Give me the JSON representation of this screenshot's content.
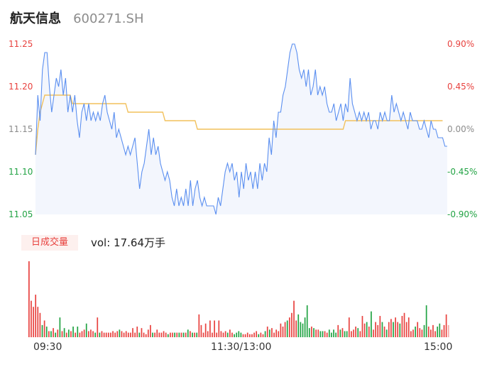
{
  "stock": {
    "name": "航天信息",
    "code": "600271.SH"
  },
  "volume": {
    "tab_label": "日成交量",
    "summary": "vol: 17.64万手"
  },
  "colors": {
    "price_line": "#5b8ff0",
    "avg_line": "#f2c15c",
    "up": "#e8423f",
    "down": "#22a344",
    "flat": "#8c8c8c",
    "area": "#f3f6fd"
  },
  "chart_data": [
    {
      "type": "line",
      "series": [
        {
          "name": "",
          "values": [
            11.12,
            11.19,
            11.16,
            11.22,
            11.24,
            11.24,
            11.2,
            11.17,
            11.19,
            11.21,
            11.2,
            11.22,
            11.19,
            11.21,
            11.17,
            11.19,
            11.17,
            11.19,
            11.16,
            11.14,
            11.17,
            11.18,
            11.16,
            11.18,
            11.16,
            11.17,
            11.16,
            11.17,
            11.16,
            11.18,
            11.19,
            11.17,
            11.16,
            11.15,
            11.17,
            11.14,
            11.15,
            11.14,
            11.13,
            11.12,
            11.13,
            11.12,
            11.13,
            11.14,
            11.11,
            11.08,
            11.1,
            11.11,
            11.13,
            11.15,
            11.12,
            11.14,
            11.12,
            11.13,
            11.11,
            11.1,
            11.09,
            11.1,
            11.09,
            11.07,
            11.06,
            11.08,
            11.06,
            11.07,
            11.06,
            11.08,
            11.06,
            11.09,
            11.06,
            11.08,
            11.09,
            11.07,
            11.06,
            11.07,
            11.06,
            11.06,
            11.06,
            11.06,
            11.05,
            11.07,
            11.06,
            11.08,
            11.1,
            11.11,
            11.1,
            11.11,
            11.09,
            11.1,
            11.07,
            11.1,
            11.08,
            11.11,
            11.09,
            11.1,
            11.08,
            11.1,
            11.08,
            11.11,
            11.09,
            11.11,
            11.1,
            11.14,
            11.12,
            11.16,
            11.14,
            11.17,
            11.17,
            11.19,
            11.2,
            11.22,
            11.24,
            11.25,
            11.25,
            11.24,
            11.22,
            11.21,
            11.22,
            11.2,
            11.22,
            11.19,
            11.2,
            11.22,
            11.19,
            11.2,
            11.19,
            11.2,
            11.18,
            11.17,
            11.17,
            11.18,
            11.16,
            11.17,
            11.18,
            11.16,
            11.18,
            11.17,
            11.21,
            11.18,
            11.17,
            11.16,
            11.17,
            11.16,
            11.17,
            11.16,
            11.17,
            11.15,
            11.16,
            11.16,
            11.15,
            11.17,
            11.16,
            11.17,
            11.16,
            11.16,
            11.19,
            11.17,
            11.18,
            11.17,
            11.16,
            11.17,
            11.16,
            11.15,
            11.17,
            11.16,
            11.16,
            11.16,
            11.15,
            11.15,
            11.16,
            11.15,
            11.14,
            11.16,
            11.15,
            11.15,
            11.14,
            11.14,
            11.14,
            11.13,
            11.13
          ]
        },
        {
          "name": "",
          "values": [
            11.12,
            11.15,
            11.17,
            11.18,
            11.19,
            11.19,
            11.19,
            11.19,
            11.19,
            11.19,
            11.19,
            11.19,
            11.19,
            11.19,
            11.19,
            11.19,
            11.18,
            11.18,
            11.18,
            11.18,
            11.18,
            11.18,
            11.18,
            11.18,
            11.18,
            11.18,
            11.18,
            11.18,
            11.18,
            11.18,
            11.18,
            11.18,
            11.18,
            11.18,
            11.18,
            11.18,
            11.18,
            11.18,
            11.18,
            11.18,
            11.17,
            11.17,
            11.17,
            11.17,
            11.17,
            11.17,
            11.17,
            11.17,
            11.17,
            11.17,
            11.17,
            11.17,
            11.17,
            11.17,
            11.17,
            11.17,
            11.16,
            11.16,
            11.16,
            11.16,
            11.16,
            11.16,
            11.16,
            11.16,
            11.16,
            11.16,
            11.16,
            11.16,
            11.16,
            11.16,
            11.15,
            11.15,
            11.15,
            11.15,
            11.15,
            11.15,
            11.15,
            11.15,
            11.15,
            11.15,
            11.15,
            11.15,
            11.15,
            11.15,
            11.15,
            11.15,
            11.15,
            11.15,
            11.15,
            11.15,
            11.15,
            11.15,
            11.15,
            11.15,
            11.15,
            11.15,
            11.15,
            11.15,
            11.15,
            11.15,
            11.15,
            11.15,
            11.15,
            11.15,
            11.15,
            11.15,
            11.15,
            11.15,
            11.15,
            11.15,
            11.15,
            11.15,
            11.15,
            11.15,
            11.15,
            11.15,
            11.15,
            11.15,
            11.15,
            11.15,
            11.15,
            11.15,
            11.15,
            11.15,
            11.15,
            11.15,
            11.15,
            11.15,
            11.15,
            11.15,
            11.15,
            11.15,
            11.15,
            11.15,
            11.16,
            11.16,
            11.16,
            11.16,
            11.16,
            11.16,
            11.16,
            11.16,
            11.16,
            11.16,
            11.16,
            11.16,
            11.16,
            11.16,
            11.16,
            11.16,
            11.16,
            11.16,
            11.16,
            11.16,
            11.16,
            11.16,
            11.16,
            11.16,
            11.16,
            11.16,
            11.16,
            11.16,
            11.16,
            11.16,
            11.16,
            11.16,
            11.16,
            11.16,
            11.16,
            11.16,
            11.16,
            11.16,
            11.16,
            11.16,
            11.16,
            11.16,
            11.16
          ]
        }
      ],
      "y_ticks": [
        "11.25",
        "11.20",
        "11.15",
        "11.10",
        "11.05"
      ],
      "y_tick_colors": [
        "up",
        "up",
        "flat",
        "down",
        "down"
      ],
      "pct_ticks": [
        "0.90%",
        "0.45%",
        "0.00%",
        "-0.45%",
        "-0.90%"
      ],
      "pct_tick_colors": [
        "up",
        "up",
        "flat",
        "down",
        "down"
      ],
      "ylim": [
        11.05,
        11.25
      ]
    },
    {
      "type": "bar",
      "x_ticks": [
        "09:30",
        "11:30/13:00",
        "15:00"
      ],
      "values": [
        100,
        48,
        40,
        56,
        40,
        32,
        16,
        22,
        14,
        8,
        8,
        12,
        6,
        10,
        26,
        8,
        12,
        6,
        10,
        8,
        14,
        6,
        14,
        6,
        8,
        10,
        18,
        8,
        10,
        8,
        6,
        26,
        6,
        8,
        6,
        6,
        6,
        6,
        8,
        6,
        8,
        10,
        8,
        6,
        8,
        6,
        6,
        12,
        6,
        14,
        6,
        12,
        6,
        4,
        10,
        16,
        6,
        6,
        10,
        6,
        6,
        8,
        6,
        4,
        6,
        6,
        6,
        6,
        6,
        6,
        6,
        6,
        10,
        8,
        6,
        6,
        6,
        30,
        16,
        6,
        18,
        8,
        22,
        6,
        22,
        6,
        22,
        8,
        6,
        8,
        6,
        10,
        6,
        4,
        6,
        8,
        6,
        4,
        4,
        6,
        4,
        4,
        6,
        8,
        4,
        6,
        4,
        8,
        14,
        10,
        12,
        6,
        10,
        8,
        18,
        14,
        20,
        22,
        26,
        32,
        48,
        22,
        30,
        20,
        18,
        26,
        42,
        12,
        14,
        12,
        10,
        10,
        8,
        8,
        8,
        6,
        10,
        6,
        10,
        6,
        16,
        10,
        12,
        8,
        8,
        26,
        8,
        10,
        14,
        12,
        8,
        28,
        18,
        20,
        14,
        34,
        10,
        20,
        16,
        28,
        20,
        14,
        10,
        20,
        24,
        20,
        26,
        20,
        18,
        28,
        32,
        20,
        26,
        8,
        10,
        14,
        20,
        12,
        10,
        16,
        42,
        14,
        10,
        16,
        8,
        14,
        18,
        10,
        16,
        30,
        16
      ],
      "directions": [
        "up",
        "up",
        "up",
        "up",
        "up",
        "up",
        "down",
        "up",
        "down",
        "up",
        "down",
        "up",
        "down",
        "up",
        "down",
        "up",
        "down",
        "up",
        "down",
        "up",
        "down",
        "up",
        "down",
        "up",
        "up",
        "up",
        "down",
        "up",
        "up",
        "up",
        "down",
        "up",
        "down",
        "up",
        "up",
        "up",
        "up",
        "up",
        "up",
        "up",
        "up",
        "down",
        "up",
        "up",
        "up",
        "up",
        "up",
        "up",
        "up",
        "up",
        "down",
        "up",
        "up",
        "up",
        "up",
        "up",
        "down",
        "up",
        "up",
        "up",
        "up",
        "up",
        "up",
        "down",
        "up",
        "up",
        "down",
        "up",
        "down",
        "up",
        "down",
        "up",
        "down",
        "up",
        "down",
        "up",
        "down",
        "up",
        "up",
        "up",
        "up",
        "up",
        "up",
        "up",
        "up",
        "up",
        "up",
        "up",
        "up",
        "up",
        "down",
        "up",
        "up",
        "down",
        "down",
        "down",
        "down",
        "up",
        "up",
        "up",
        "up",
        "up",
        "up",
        "up",
        "down",
        "up",
        "up",
        "down",
        "up",
        "down",
        "up",
        "up",
        "up",
        "up",
        "up",
        "up",
        "up",
        "down",
        "up",
        "up",
        "up",
        "up",
        "down",
        "down",
        "down",
        "down",
        "down",
        "down",
        "up",
        "down",
        "up",
        "up",
        "down",
        "down",
        "up",
        "up",
        "down",
        "down",
        "down",
        "down",
        "up",
        "down",
        "up",
        "down",
        "down",
        "up",
        "up",
        "up",
        "up",
        "down",
        "up",
        "up",
        "up",
        "down",
        "up",
        "down",
        "up",
        "up",
        "up",
        "up",
        "down",
        "up",
        "down",
        "up",
        "up",
        "down",
        "up",
        "up",
        "down",
        "up",
        "up",
        "up",
        "up",
        "up",
        "up",
        "down",
        "up",
        "up",
        "up",
        "down",
        "down",
        "up",
        "up",
        "up",
        "up",
        "down",
        "down",
        "up",
        "up",
        "up",
        "up"
      ]
    }
  ]
}
